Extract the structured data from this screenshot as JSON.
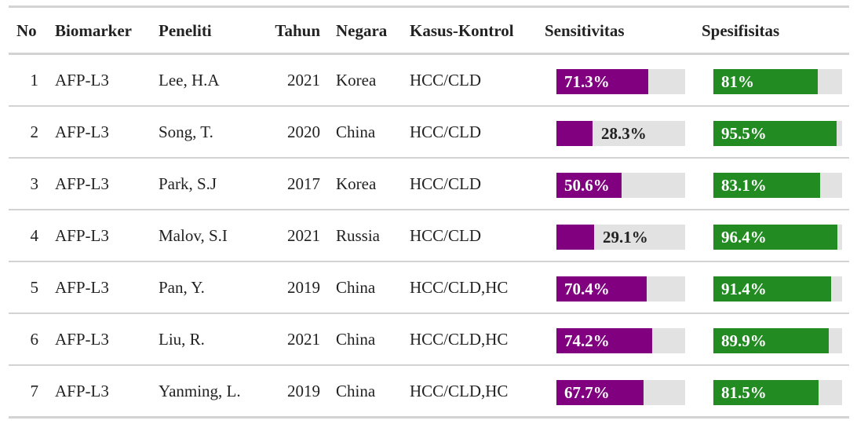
{
  "colors": {
    "sensitivity_bar": "#800080",
    "specificity_bar": "#228b22",
    "bar_track": "#e2e2e2",
    "rule": "#d3d3d3"
  },
  "headers": {
    "no": "No",
    "biomarker": "Biomarker",
    "peneliti": "Peneliti",
    "tahun": "Tahun",
    "negara": "Negara",
    "kasus_kontrol": "Kasus-Kontrol",
    "sensitivitas": "Sensitivitas",
    "spesifisitas": "Spesifisitas"
  },
  "rows": [
    {
      "no": "1",
      "biomarker": "AFP-L3",
      "peneliti": "Lee, H.A",
      "tahun": "2021",
      "negara": "Korea",
      "kasus_kontrol": "HCC/CLD",
      "sensitivitas": "71.3%",
      "sens_value": 71.3,
      "spesifisitas": "81%",
      "spec_value": 81
    },
    {
      "no": "2",
      "biomarker": "AFP-L3",
      "peneliti": "Song, T.",
      "tahun": "2020",
      "negara": "China",
      "kasus_kontrol": "HCC/CLD",
      "sensitivitas": "28.3%",
      "sens_value": 28.3,
      "spesifisitas": "95.5%",
      "spec_value": 95.5
    },
    {
      "no": "3",
      "biomarker": "AFP-L3",
      "peneliti": "Park, S.J",
      "tahun": "2017",
      "negara": "Korea",
      "kasus_kontrol": "HCC/CLD",
      "sensitivitas": "50.6%",
      "sens_value": 50.6,
      "spesifisitas": "83.1%",
      "spec_value": 83.1
    },
    {
      "no": "4",
      "biomarker": "AFP-L3",
      "peneliti": "Malov, S.I",
      "tahun": "2021",
      "negara": "Russia",
      "kasus_kontrol": "HCC/CLD",
      "sensitivitas": "29.1%",
      "sens_value": 29.1,
      "spesifisitas": "96.4%",
      "spec_value": 96.4
    },
    {
      "no": "5",
      "biomarker": "AFP-L3",
      "peneliti": "Pan, Y.",
      "tahun": "2019",
      "negara": "China",
      "kasus_kontrol": "HCC/CLD,HC",
      "sensitivitas": "70.4%",
      "sens_value": 70.4,
      "spesifisitas": "91.4%",
      "spec_value": 91.4
    },
    {
      "no": "6",
      "biomarker": "AFP-L3",
      "peneliti": "Liu, R.",
      "tahun": "2021",
      "negara": "China",
      "kasus_kontrol": "HCC/CLD,HC",
      "sensitivitas": "74.2%",
      "sens_value": 74.2,
      "spesifisitas": "89.9%",
      "spec_value": 89.9
    },
    {
      "no": "7",
      "biomarker": "AFP-L3",
      "peneliti": "Yanming, L.",
      "tahun": "2019",
      "negara": "China",
      "kasus_kontrol": "HCC/CLD,HC",
      "sensitivitas": "67.7%",
      "sens_value": 67.7,
      "spesifisitas": "81.5%",
      "spec_value": 81.5
    }
  ]
}
